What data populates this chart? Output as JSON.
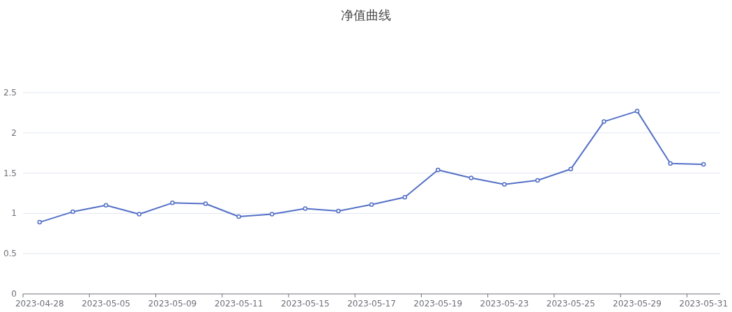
{
  "chart_data": {
    "type": "line",
    "title": "净值曲线",
    "categories": [
      "2023-04-28",
      null,
      "2023-05-05",
      null,
      "2023-05-09",
      null,
      "2023-05-11",
      null,
      "2023-05-15",
      null,
      "2023-05-17",
      null,
      "2023-05-19",
      null,
      "2023-05-23",
      null,
      "2023-05-25",
      null,
      "2023-05-29",
      null,
      "2023-05-31"
    ],
    "series": [
      {
        "color": "#5470c6",
        "values": [
          0.89,
          1.02,
          1.1,
          0.99,
          1.13,
          1.12,
          0.96,
          0.99,
          1.06,
          1.03,
          1.11,
          1.2,
          1.54,
          1.44,
          1.36,
          1.41,
          1.55,
          2.14,
          2.27,
          1.62,
          1.61
        ]
      }
    ],
    "ylim": [
      0,
      2.5
    ],
    "yticks": [
      0,
      0.5,
      1,
      1.5,
      2,
      2.5
    ],
    "grid": "y",
    "marker": "circle",
    "line_style": "solid"
  }
}
